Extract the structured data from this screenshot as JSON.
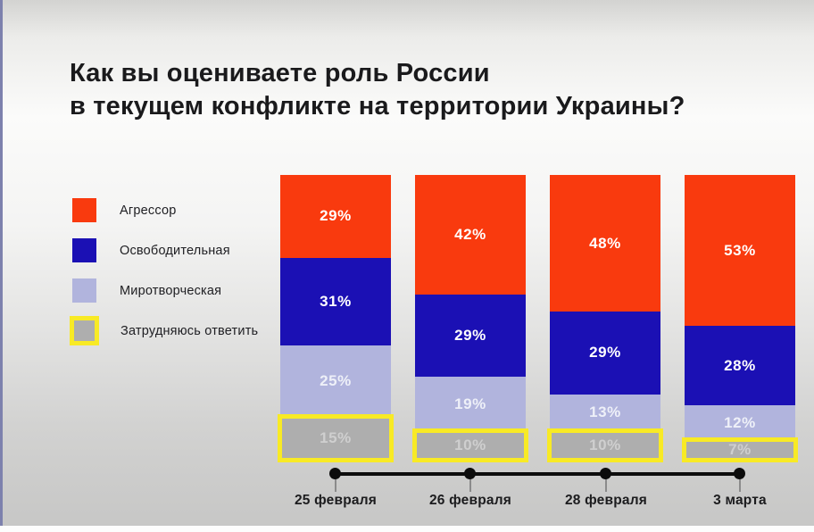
{
  "title": {
    "line1": "Как вы оцениваете роль России",
    "line2": "в текущем конфликте на территории Украины?"
  },
  "chart_data": {
    "type": "bar",
    "stacked": true,
    "percent_total": 100,
    "value_suffix": "%",
    "legend_position": "left",
    "title": "Как вы оцениваете роль России в текущем конфликте на территории Украины?",
    "categories": [
      "25 февраля",
      "26 февраля",
      "28 февраля",
      "3 марта"
    ],
    "series": [
      {
        "name": "Агрессор",
        "color": "#f93a0e",
        "values": [
          29,
          42,
          48,
          53
        ]
      },
      {
        "name": "Освободительная",
        "color": "#1b10b4",
        "values": [
          31,
          29,
          29,
          28
        ]
      },
      {
        "name": "Миротворческая",
        "color": "#b1b4dd",
        "values": [
          25,
          19,
          13,
          12
        ]
      },
      {
        "name": "Затрудняюсь ответить",
        "color": "#aeaeae",
        "values": [
          15,
          10,
          10,
          7
        ],
        "highlighted": true
      }
    ],
    "highlight_color": "#f8ea25"
  }
}
